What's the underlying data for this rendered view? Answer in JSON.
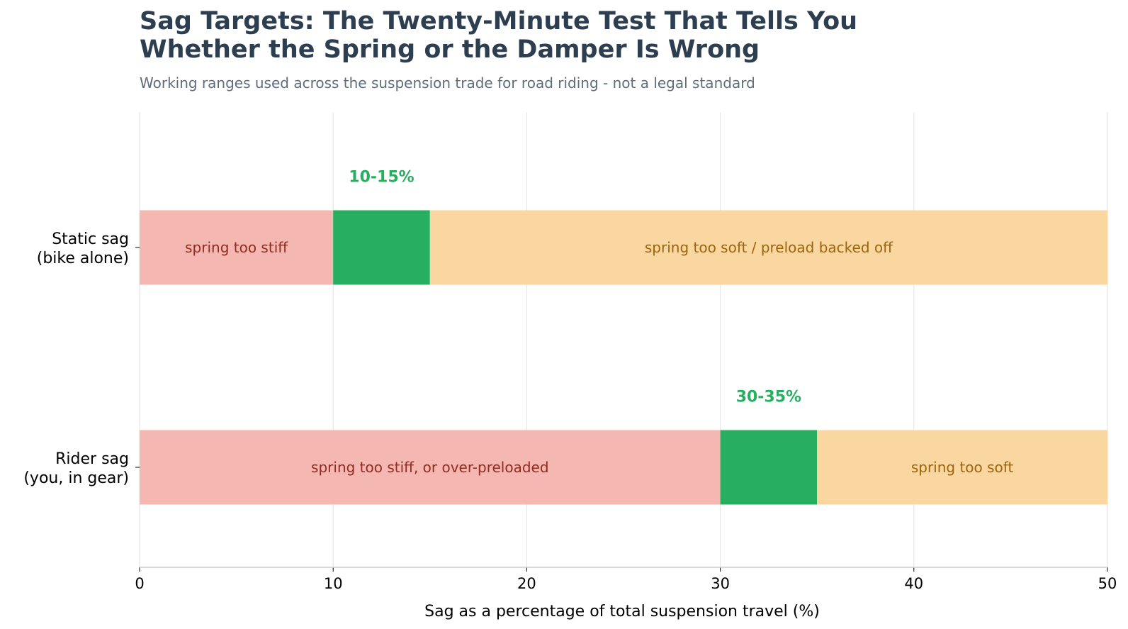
{
  "chart_data": {
    "type": "bar",
    "orientation": "horizontal",
    "stacked": true,
    "title_lines": [
      "Sag Targets: The Twenty-Minute Test That Tells You",
      "Whether the Spring or the Damper Is Wrong"
    ],
    "subtitle": "Working ranges used across the suspension trade for road riding - not a legal standard",
    "xlabel": "Sag as a percentage of total suspension travel (%)",
    "ylabel": "",
    "xlim": [
      0,
      50
    ],
    "xticks": [
      0,
      10,
      20,
      30,
      40,
      50
    ],
    "grid": "vertical",
    "categories": [
      {
        "label_lines": [
          "Static sag",
          "(bike alone)"
        ],
        "target_label": "10-15%",
        "segments": [
          {
            "zone": "stiff",
            "start": 0,
            "end": 10,
            "label": "spring too stiff"
          },
          {
            "zone": "target",
            "start": 10,
            "end": 15,
            "label": ""
          },
          {
            "zone": "soft",
            "start": 15,
            "end": 50,
            "label": "spring too soft  /  preload backed off"
          }
        ]
      },
      {
        "label_lines": [
          "Rider sag",
          "(you, in gear)"
        ],
        "target_label": "30-35%",
        "segments": [
          {
            "zone": "stiff",
            "start": 0,
            "end": 30,
            "label": "spring too stiff, or over-preloaded"
          },
          {
            "zone": "target",
            "start": 30,
            "end": 35,
            "label": ""
          },
          {
            "zone": "soft",
            "start": 35,
            "end": 50,
            "label": "spring too soft"
          }
        ]
      }
    ],
    "colors": {
      "stiff_fill": "#f5b7b1",
      "stiff_text": "#922b21",
      "target_fill": "#27ae60",
      "target_text": "#27ae60",
      "soft_fill": "#fad7a0",
      "soft_text": "#9c640c",
      "grid": "#e8e8e8",
      "axis": "#cccccc",
      "title": "#2c3e50",
      "subtitle": "#5d6d7e"
    }
  }
}
